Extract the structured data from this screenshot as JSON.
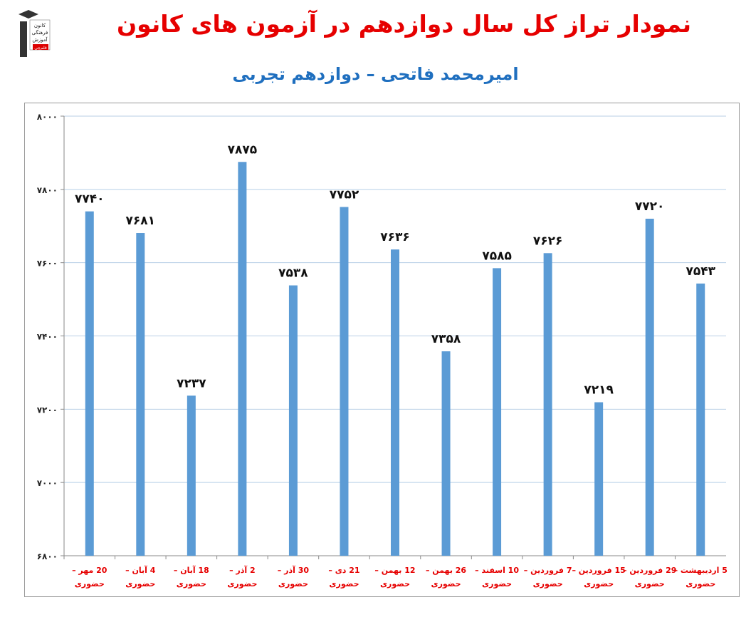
{
  "header": {
    "title": "نمودار تراز کل سال دوازدهم در آزمون های کانون",
    "subtitle": "امیرمحمد فاتحی – دوازدهم تجربی"
  },
  "logo": {
    "lines": [
      "کانون",
      "فرهنگی",
      "آموزش"
    ],
    "badge": "قلم‌چی"
  },
  "colors": {
    "bar": "#5b9bd5",
    "title": "#e60000",
    "subtitle": "#1f6fbf",
    "category_label": "#e60000",
    "grid": "#b8cfe6"
  },
  "chart_data": {
    "type": "bar",
    "categories": [
      [
        "20 مهر –",
        "حضوری"
      ],
      [
        "4 آبان –",
        "حضوری"
      ],
      [
        "18 آبان –",
        "حضوری"
      ],
      [
        "2 آذر –",
        "حضوری"
      ],
      [
        "30 آذر –",
        "حضوری"
      ],
      [
        "21 دی –",
        "حضوری"
      ],
      [
        "12 بهمن –",
        "حضوری"
      ],
      [
        "26 بهمن –",
        "حضوری"
      ],
      [
        "10 اسفند –",
        "حضوری"
      ],
      [
        "7 فروردین –",
        "حضوری"
      ],
      [
        "15 فروردین –",
        "حضوری"
      ],
      [
        "29 فروردین –",
        "حضوری"
      ],
      [
        "5 اردیبهشت –",
        "حضوری"
      ]
    ],
    "values": [
      7740,
      7681,
      7237,
      7875,
      7538,
      7752,
      7636,
      7358,
      7585,
      7626,
      7219,
      7720,
      7543
    ],
    "value_labels": [
      "۷۷۴۰",
      "۷۶۸۱",
      "۷۲۳۷",
      "۷۸۷۵",
      "۷۵۳۸",
      "۷۷۵۲",
      "۷۶۳۶",
      "۷۳۵۸",
      "۷۵۸۵",
      "۷۶۲۶",
      "۷۲۱۹",
      "۷۷۲۰",
      "۷۵۴۳"
    ],
    "ylim": [
      6800,
      8000
    ],
    "yticks": [
      6800,
      7000,
      7200,
      7400,
      7600,
      7800,
      8000
    ],
    "ytick_labels": [
      "۶۸۰۰",
      "۷۰۰۰",
      "۷۲۰۰",
      "۷۴۰۰",
      "۷۶۰۰",
      "۷۸۰۰",
      "۸۰۰۰"
    ],
    "grid": true
  }
}
